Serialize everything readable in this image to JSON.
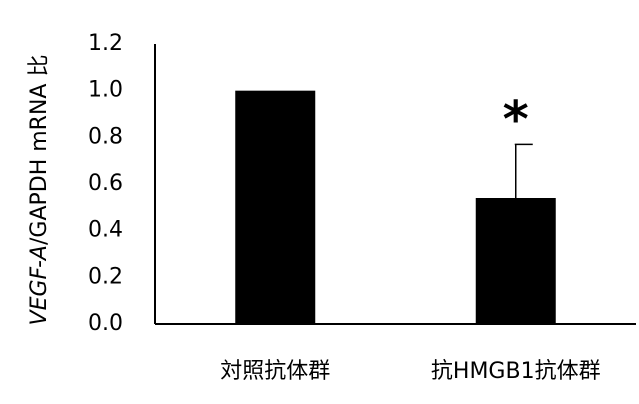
{
  "chart_data": {
    "type": "bar",
    "title": "",
    "xlabel": "",
    "ylabel": {
      "italic_part": "VEGF-A",
      "rest": "/GAPDH  mRNA 比"
    },
    "categories": [
      "対照抗体群",
      "抗HMGB1抗体群"
    ],
    "values": [
      1.0,
      0.54
    ],
    "error_bars": [
      0.0,
      0.23
    ],
    "significance_markers": [
      "",
      "*"
    ],
    "ylim": [
      0,
      1.2
    ],
    "yticks": [
      "0.0",
      "0.2",
      "0.4",
      "0.6",
      "0.8",
      "1.0",
      "1.2"
    ],
    "bar_color": "#000000",
    "grid": false,
    "legend": "none"
  }
}
